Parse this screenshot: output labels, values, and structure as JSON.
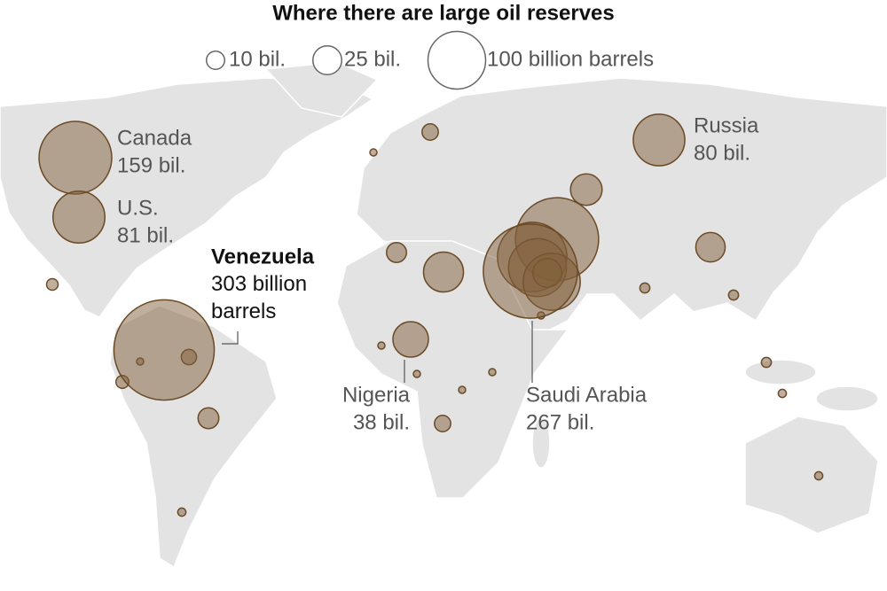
{
  "title": "Where there are large oil reserves",
  "legend": [
    {
      "value": 10,
      "label": "10 bil."
    },
    {
      "value": 25,
      "label": "25 bil."
    },
    {
      "value": 100,
      "label": "100 billion barrels"
    }
  ],
  "labeled": [
    {
      "name": "Canada",
      "value": 159,
      "value_label": "159 bil."
    },
    {
      "name": "U.S.",
      "value": 81,
      "value_label": "81 bil."
    },
    {
      "name": "Venezuela",
      "value": 303,
      "value_label": "303 billion barrels"
    },
    {
      "name": "Nigeria",
      "value": 38,
      "value_label": "38 bil."
    },
    {
      "name": "Saudi Arabia",
      "value": 267,
      "value_label": "267 bil."
    },
    {
      "name": "Russia",
      "value": 80,
      "value_label": "80 bil."
    }
  ],
  "other_values": [
    208,
    145,
    101,
    98,
    48,
    30,
    26,
    25,
    12,
    13,
    8,
    8,
    7,
    5,
    4,
    3,
    3,
    3,
    2,
    2,
    2,
    1,
    1,
    1,
    1,
    1,
    1,
    1
  ]
}
